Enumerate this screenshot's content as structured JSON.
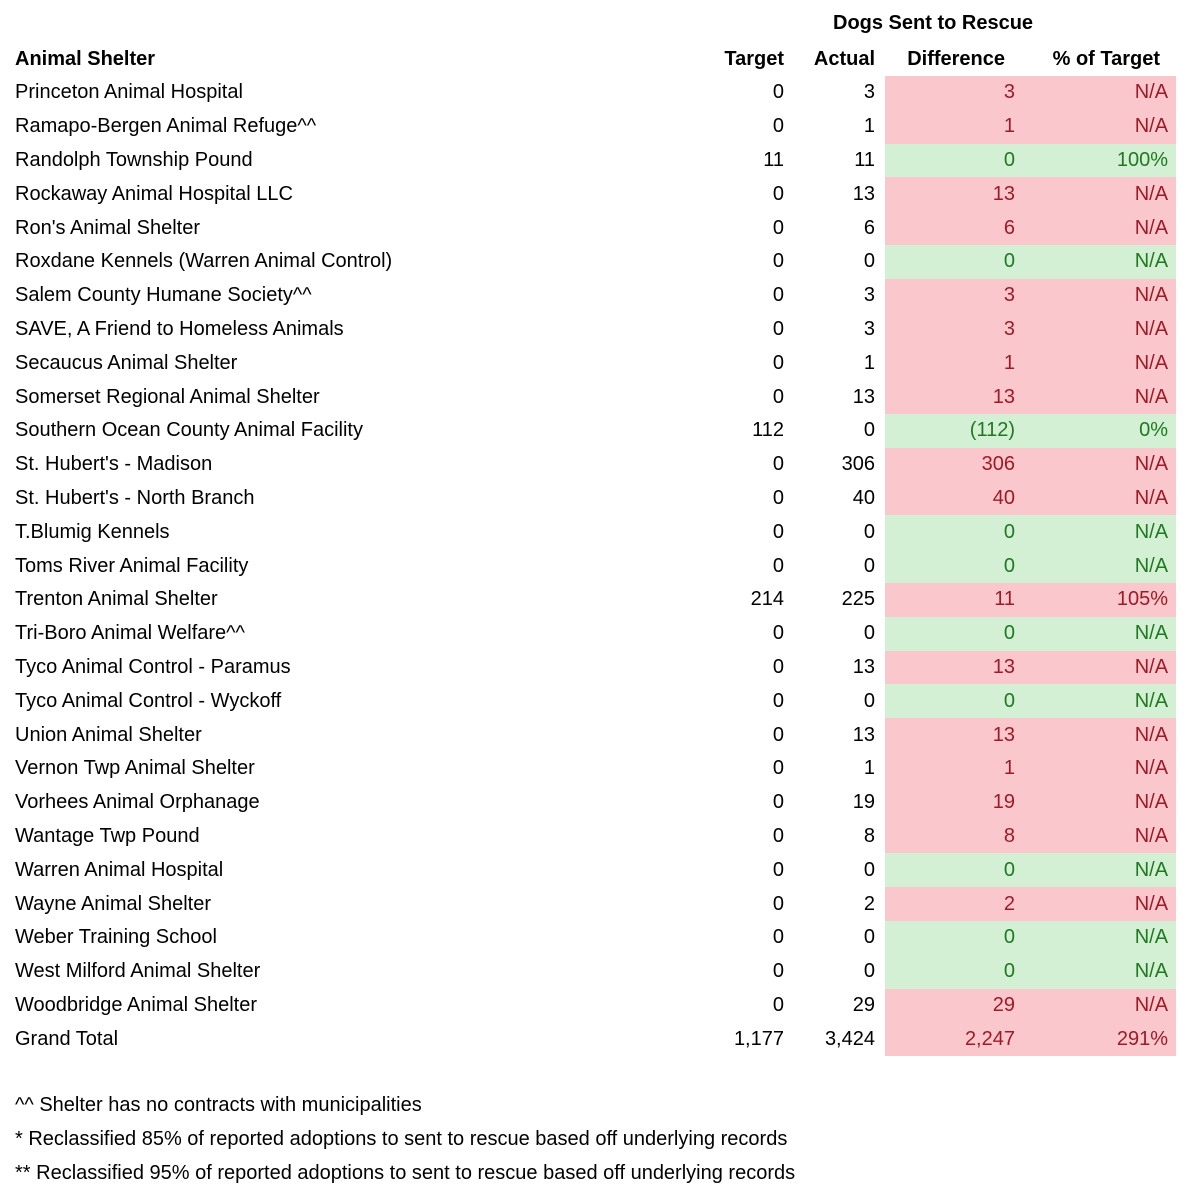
{
  "page": {
    "background": "#ffffff"
  },
  "table": {
    "group_header": "Dogs Sent to Rescue",
    "columns": [
      "Animal Shelter",
      "Target",
      "Actual",
      "Difference",
      "% of Target"
    ],
    "rows": [
      {
        "name": "Princeton Animal Hospital",
        "target": "0",
        "actual": "3",
        "difference": "3",
        "pct": "N/A",
        "status": "bad"
      },
      {
        "name": "Ramapo-Bergen Animal Refuge^^",
        "target": "0",
        "actual": "1",
        "difference": "1",
        "pct": "N/A",
        "status": "bad"
      },
      {
        "name": "Randolph Township Pound",
        "target": "11",
        "actual": "11",
        "difference": "0",
        "pct": "100%",
        "status": "good"
      },
      {
        "name": "Rockaway Animal Hospital LLC",
        "target": "0",
        "actual": "13",
        "difference": "13",
        "pct": "N/A",
        "status": "bad"
      },
      {
        "name": "Ron's Animal Shelter",
        "target": "0",
        "actual": "6",
        "difference": "6",
        "pct": "N/A",
        "status": "bad"
      },
      {
        "name": "Roxdane Kennels (Warren Animal Control)",
        "target": "0",
        "actual": "0",
        "difference": "0",
        "pct": "N/A",
        "status": "good"
      },
      {
        "name": "Salem County Humane Society^^",
        "target": "0",
        "actual": "3",
        "difference": "3",
        "pct": "N/A",
        "status": "bad"
      },
      {
        "name": "SAVE, A Friend to Homeless Animals",
        "target": "0",
        "actual": "3",
        "difference": "3",
        "pct": "N/A",
        "status": "bad"
      },
      {
        "name": "Secaucus Animal Shelter",
        "target": "0",
        "actual": "1",
        "difference": "1",
        "pct": "N/A",
        "status": "bad"
      },
      {
        "name": "Somerset Regional Animal Shelter",
        "target": "0",
        "actual": "13",
        "difference": "13",
        "pct": "N/A",
        "status": "bad"
      },
      {
        "name": "Southern Ocean County Animal Facility",
        "target": "112",
        "actual": "0",
        "difference": "(112)",
        "pct": "0%",
        "status": "good"
      },
      {
        "name": "St. Hubert's - Madison",
        "target": "0",
        "actual": "306",
        "difference": "306",
        "pct": "N/A",
        "status": "bad"
      },
      {
        "name": "St. Hubert's - North Branch",
        "target": "0",
        "actual": "40",
        "difference": "40",
        "pct": "N/A",
        "status": "bad"
      },
      {
        "name": "T.Blumig Kennels",
        "target": "0",
        "actual": "0",
        "difference": "0",
        "pct": "N/A",
        "status": "good"
      },
      {
        "name": "Toms River Animal Facility",
        "target": "0",
        "actual": "0",
        "difference": "0",
        "pct": "N/A",
        "status": "good"
      },
      {
        "name": "Trenton Animal Shelter",
        "target": "214",
        "actual": "225",
        "difference": "11",
        "pct": "105%",
        "status": "bad"
      },
      {
        "name": "Tri-Boro Animal Welfare^^",
        "target": "0",
        "actual": "0",
        "difference": "0",
        "pct": "N/A",
        "status": "good"
      },
      {
        "name": "Tyco Animal Control - Paramus",
        "target": "0",
        "actual": "13",
        "difference": "13",
        "pct": "N/A",
        "status": "bad"
      },
      {
        "name": "Tyco Animal Control - Wyckoff",
        "target": "0",
        "actual": "0",
        "difference": "0",
        "pct": "N/A",
        "status": "good"
      },
      {
        "name": "Union Animal Shelter",
        "target": "0",
        "actual": "13",
        "difference": "13",
        "pct": "N/A",
        "status": "bad"
      },
      {
        "name": "Vernon Twp Animal Shelter",
        "target": "0",
        "actual": "1",
        "difference": "1",
        "pct": "N/A",
        "status": "bad"
      },
      {
        "name": "Vorhees Animal Orphanage",
        "target": "0",
        "actual": "19",
        "difference": "19",
        "pct": "N/A",
        "status": "bad"
      },
      {
        "name": "Wantage Twp Pound",
        "target": "0",
        "actual": "8",
        "difference": "8",
        "pct": "N/A",
        "status": "bad"
      },
      {
        "name": "Warren Animal Hospital",
        "target": "0",
        "actual": "0",
        "difference": "0",
        "pct": "N/A",
        "status": "good"
      },
      {
        "name": "Wayne Animal Shelter",
        "target": "0",
        "actual": "2",
        "difference": "2",
        "pct": "N/A",
        "status": "bad"
      },
      {
        "name": "Weber Training School",
        "target": "0",
        "actual": "0",
        "difference": "0",
        "pct": "N/A",
        "status": "good"
      },
      {
        "name": "West Milford Animal Shelter",
        "target": "0",
        "actual": "0",
        "difference": "0",
        "pct": "N/A",
        "status": "good"
      },
      {
        "name": "Woodbridge Animal Shelter",
        "target": "0",
        "actual": "29",
        "difference": "29",
        "pct": "N/A",
        "status": "bad"
      },
      {
        "name": "Grand Total",
        "target": "1,177",
        "actual": "3,424",
        "difference": "2,247",
        "pct": "291%",
        "status": "bad"
      }
    ]
  },
  "footnotes": [
    "^^ Shelter has no contracts with municipalities",
    "* Reclassified 85% of reported adoptions to sent to rescue based off underlying records",
    "** Reclassified 95% of reported adoptions to sent to rescue based off underlying records"
  ],
  "colors": {
    "bad_bg": "#f9c7cc",
    "bad_text": "#9e1b26",
    "good_bg": "#d3efd4",
    "good_text": "#1f7a1f"
  },
  "chart_data": {
    "type": "table",
    "title": "Dogs Sent to Rescue",
    "columns": [
      "Animal Shelter",
      "Target",
      "Actual",
      "Difference",
      "% of Target"
    ],
    "rows": [
      [
        "Princeton Animal Hospital",
        0,
        3,
        3,
        "N/A"
      ],
      [
        "Ramapo-Bergen Animal Refuge^^",
        0,
        1,
        1,
        "N/A"
      ],
      [
        "Randolph Township Pound",
        11,
        11,
        0,
        "100%"
      ],
      [
        "Rockaway Animal Hospital LLC",
        0,
        13,
        13,
        "N/A"
      ],
      [
        "Ron's Animal Shelter",
        0,
        6,
        6,
        "N/A"
      ],
      [
        "Roxdane Kennels (Warren Animal Control)",
        0,
        0,
        0,
        "N/A"
      ],
      [
        "Salem County Humane Society^^",
        0,
        3,
        3,
        "N/A"
      ],
      [
        "SAVE, A Friend to Homeless Animals",
        0,
        3,
        3,
        "N/A"
      ],
      [
        "Secaucus Animal Shelter",
        0,
        1,
        1,
        "N/A"
      ],
      [
        "Somerset Regional Animal Shelter",
        0,
        13,
        13,
        "N/A"
      ],
      [
        "Southern Ocean County Animal Facility",
        112,
        0,
        -112,
        "0%"
      ],
      [
        "St. Hubert's - Madison",
        0,
        306,
        306,
        "N/A"
      ],
      [
        "St. Hubert's - North Branch",
        0,
        40,
        40,
        "N/A"
      ],
      [
        "T.Blumig Kennels",
        0,
        0,
        0,
        "N/A"
      ],
      [
        "Toms River Animal Facility",
        0,
        0,
        0,
        "N/A"
      ],
      [
        "Trenton Animal Shelter",
        214,
        225,
        11,
        "105%"
      ],
      [
        "Tri-Boro Animal Welfare^^",
        0,
        0,
        0,
        "N/A"
      ],
      [
        "Tyco Animal Control - Paramus",
        0,
        13,
        13,
        "N/A"
      ],
      [
        "Tyco Animal Control - Wyckoff",
        0,
        0,
        0,
        "N/A"
      ],
      [
        "Union Animal Shelter",
        0,
        13,
        13,
        "N/A"
      ],
      [
        "Vernon Twp Animal Shelter",
        0,
        1,
        1,
        "N/A"
      ],
      [
        "Vorhees Animal Orphanage",
        0,
        19,
        19,
        "N/A"
      ],
      [
        "Wantage Twp Pound",
        0,
        8,
        8,
        "N/A"
      ],
      [
        "Warren Animal Hospital",
        0,
        0,
        0,
        "N/A"
      ],
      [
        "Wayne Animal Shelter",
        0,
        2,
        2,
        "N/A"
      ],
      [
        "Weber Training School",
        0,
        0,
        0,
        "N/A"
      ],
      [
        "West Milford Animal Shelter",
        0,
        0,
        0,
        "N/A"
      ],
      [
        "Woodbridge Animal Shelter",
        0,
        29,
        29,
        "N/A"
      ],
      [
        "Grand Total",
        1177,
        3424,
        2247,
        "291%"
      ]
    ]
  }
}
